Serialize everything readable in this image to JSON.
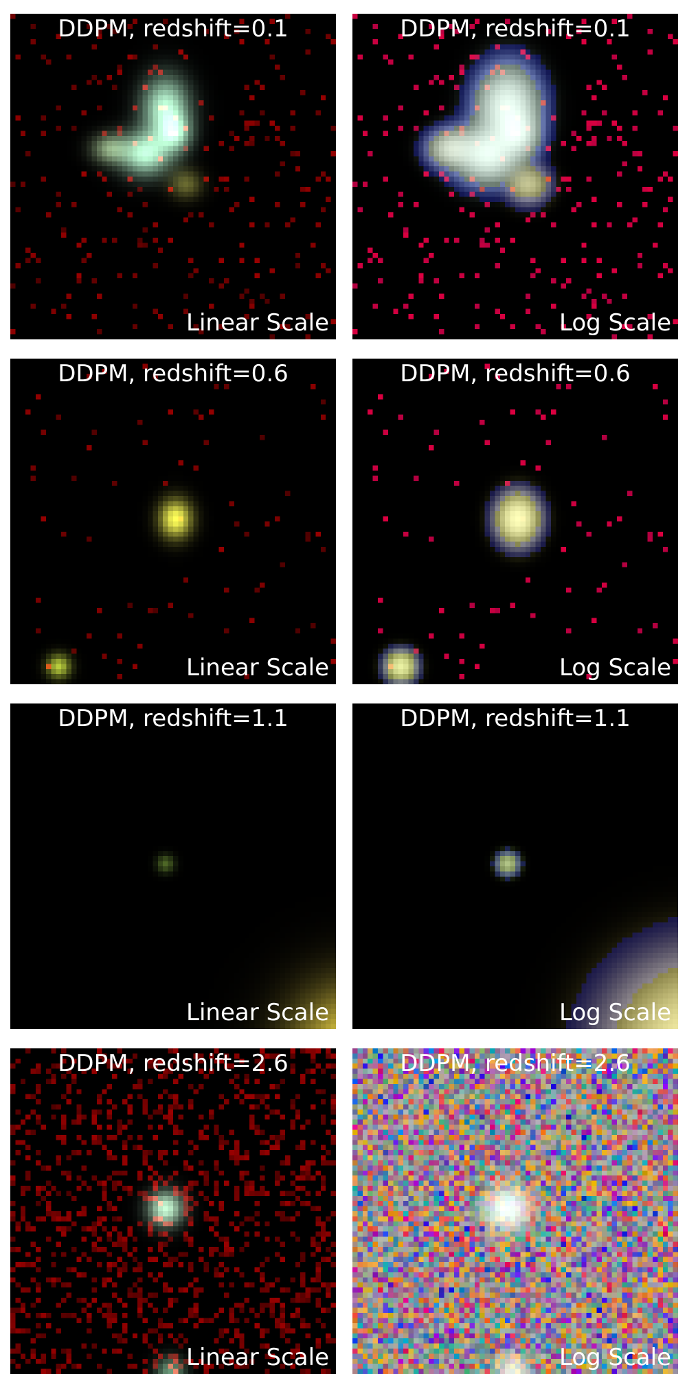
{
  "panels": [
    {
      "title": "DDPM, redshift=0.1",
      "scale_label": "Linear Scale",
      "scale": "linear",
      "redshift": 0.1
    },
    {
      "title": "DDPM, redshift=0.1",
      "scale_label": "Log Scale",
      "scale": "log",
      "redshift": 0.1
    },
    {
      "title": "DDPM, redshift=0.6",
      "scale_label": "Linear Scale",
      "scale": "linear",
      "redshift": 0.6
    },
    {
      "title": "DDPM, redshift=0.6",
      "scale_label": "Log Scale",
      "scale": "log",
      "redshift": 0.6
    },
    {
      "title": "DDPM, redshift=1.1",
      "scale_label": "Linear Scale",
      "scale": "linear",
      "redshift": 1.1
    },
    {
      "title": "DDPM, redshift=1.1",
      "scale_label": "Log Scale",
      "scale": "log",
      "redshift": 1.1
    },
    {
      "title": "DDPM, redshift=2.6",
      "scale_label": "Linear Scale",
      "scale": "linear",
      "redshift": 2.6
    },
    {
      "title": "DDPM, redshift=2.6",
      "scale_label": "Log Scale",
      "scale": "log",
      "redshift": 2.6
    }
  ],
  "colors": {
    "background": "#000000",
    "text": "#ffffff",
    "galaxy_core": "#c8ffd8",
    "noise_red": "#8a0000"
  }
}
